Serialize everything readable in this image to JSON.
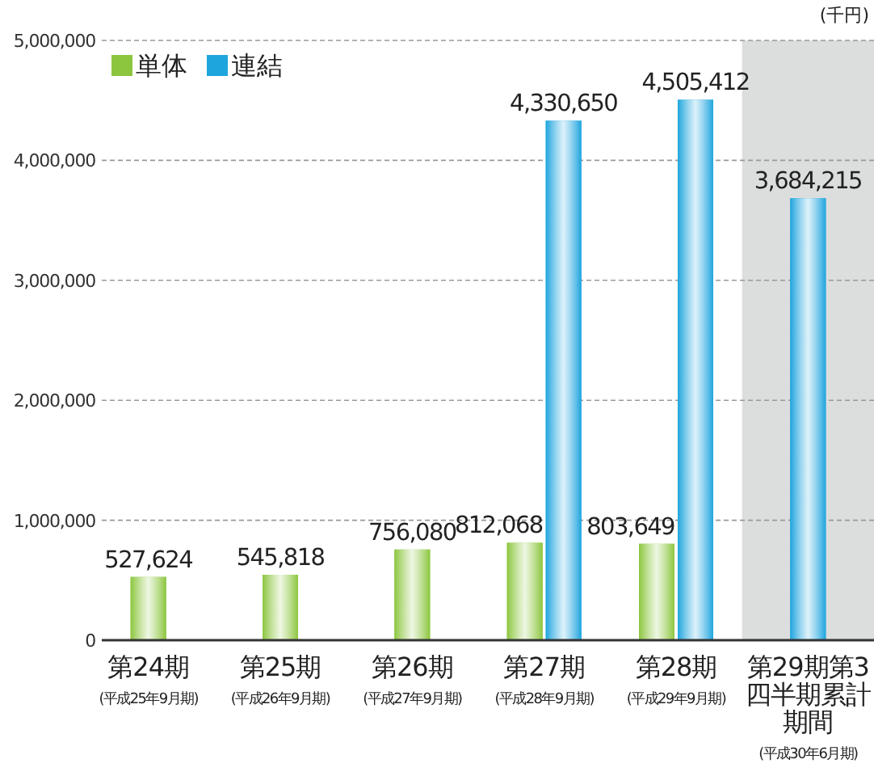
{
  "chart_data": {
    "type": "bar",
    "categories": [
      "第24期\n(平成25年9月期)",
      "第25期\n(平成26年9月期)",
      "第26期\n(平成27年9月期)",
      "第27期\n(平成28年9月期)",
      "第28期\n(平成29年9月期)",
      "第29期第3四半期累計期間\n(平成30年6月期)"
    ],
    "series": [
      {
        "name": "単体",
        "color": "#8cc63f",
        "values": [
          527624,
          545818,
          756080,
          812068,
          803649,
          null
        ],
        "value_labels": [
          "527,624",
          "545,818",
          "756,080",
          "812,068",
          "803,649",
          null
        ]
      },
      {
        "name": "連結",
        "color": "#1ea5de",
        "values": [
          null,
          null,
          null,
          4330650,
          4505412,
          3684215
        ],
        "value_labels": [
          null,
          null,
          null,
          "4,330,650",
          "4,505,412",
          "3,684,215"
        ]
      }
    ],
    "ylim": [
      0,
      5000000
    ],
    "yticks": [
      0,
      {
        "value": 1000000,
        "label": "1,000,000"
      },
      {
        "value": 2000000,
        "label": "2,000,000"
      },
      {
        "value": 3000000,
        "label": "3,000,000"
      },
      {
        "value": 4000000,
        "label": "4,000,000"
      },
      {
        "value": 5000000,
        "label": "5,000,000"
      }
    ],
    "grid": "y",
    "legend": "top left",
    "bands": [
      {
        "axis": "x",
        "from": "第29期第3四半期累計期間\n(平成30年6月期)",
        "to": "第29期第3四半期累計期間\n(平成30年6月期)",
        "color": "#dcdddd"
      }
    ],
    "annotations": [
      "(千円)"
    ]
  }
}
